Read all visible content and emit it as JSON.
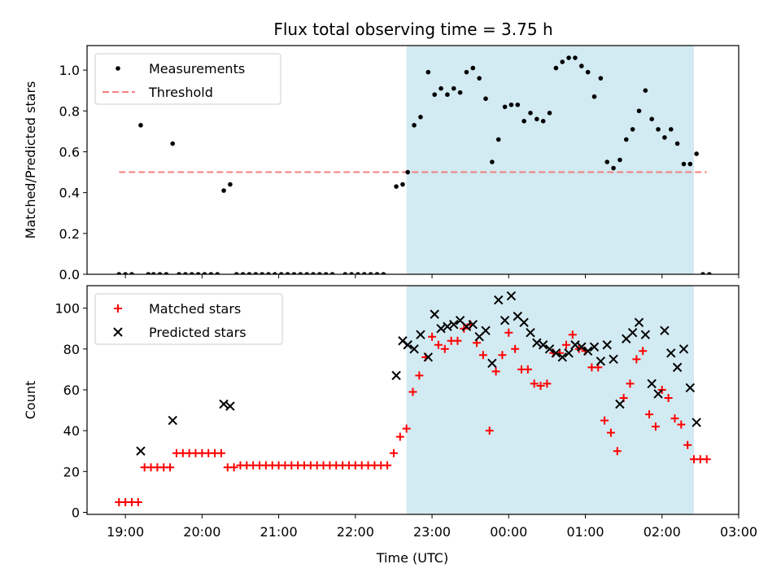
{
  "title": "Flux total observing time = 3.75 h",
  "xlabel": "Time (UTC)",
  "x_ticks": [
    "19:00",
    "20:00",
    "21:00",
    "22:00",
    "23:00",
    "00:00",
    "01:00",
    "02:00",
    "03:00"
  ],
  "colors": {
    "shade": "#add8e6",
    "threshold": "#f08080",
    "measurements": "#000000",
    "matched": "#ff0000",
    "predicted": "#000000"
  },
  "chart_data": [
    {
      "type": "scatter",
      "ylabel": "Matched/Predicted stars",
      "xlim": [
        "18:30",
        "03:00"
      ],
      "ylim": [
        0,
        1.12
      ],
      "y_ticks": [
        "0.0",
        "0.2",
        "0.4",
        "0.6",
        "0.8",
        "1.0"
      ],
      "shaded_interval": [
        "22:40",
        "02:25"
      ],
      "legend": {
        "location": "upper-left",
        "entries": [
          "Measurements",
          "Threshold"
        ]
      },
      "threshold": {
        "name": "Threshold",
        "value": 0.5,
        "x_range": [
          "18:55",
          "02:35"
        ],
        "style": "dashed"
      },
      "series": [
        {
          "name": "Measurements",
          "marker": "dot",
          "points": [
            [
              "18:55",
              0
            ],
            [
              "19:00",
              0
            ],
            [
              "19:05",
              0
            ],
            [
              "19:12",
              0.73
            ],
            [
              "19:18",
              0
            ],
            [
              "19:22",
              0
            ],
            [
              "19:27",
              0
            ],
            [
              "19:32",
              0
            ],
            [
              "19:37",
              0.64
            ],
            [
              "19:42",
              0
            ],
            [
              "19:47",
              0
            ],
            [
              "19:52",
              0
            ],
            [
              "19:57",
              0
            ],
            [
              "20:02",
              0
            ],
            [
              "20:07",
              0
            ],
            [
              "20:12",
              0
            ],
            [
              "20:17",
              0.41
            ],
            [
              "20:22",
              0.44
            ],
            [
              "20:27",
              0
            ],
            [
              "20:32",
              0
            ],
            [
              "20:37",
              0
            ],
            [
              "20:42",
              0
            ],
            [
              "20:47",
              0
            ],
            [
              "20:52",
              0
            ],
            [
              "20:57",
              0
            ],
            [
              "21:02",
              0
            ],
            [
              "21:07",
              0
            ],
            [
              "21:12",
              0
            ],
            [
              "21:17",
              0
            ],
            [
              "21:22",
              0
            ],
            [
              "21:27",
              0
            ],
            [
              "21:32",
              0
            ],
            [
              "21:37",
              0
            ],
            [
              "21:42",
              0
            ],
            [
              "21:52",
              0
            ],
            [
              "21:57",
              0
            ],
            [
              "22:02",
              0
            ],
            [
              "22:07",
              0
            ],
            [
              "22:12",
              0
            ],
            [
              "22:17",
              0
            ],
            [
              "22:22",
              0
            ],
            [
              "22:32",
              0.43
            ],
            [
              "22:37",
              0.44
            ],
            [
              "22:41",
              0.5
            ],
            [
              "22:46",
              0.73
            ],
            [
              "22:51",
              0.77
            ],
            [
              "22:57",
              0.99
            ],
            [
              "23:02",
              0.88
            ],
            [
              "23:07",
              0.91
            ],
            [
              "23:12",
              0.88
            ],
            [
              "23:17",
              0.91
            ],
            [
              "23:22",
              0.89
            ],
            [
              "23:27",
              0.99
            ],
            [
              "23:32",
              1.01
            ],
            [
              "23:37",
              0.96
            ],
            [
              "23:42",
              0.86
            ],
            [
              "23:47",
              0.55
            ],
            [
              "23:52",
              0.66
            ],
            [
              "23:57",
              0.82
            ],
            [
              "00:02",
              0.83
            ],
            [
              "00:07",
              0.83
            ],
            [
              "00:12",
              0.75
            ],
            [
              "00:17",
              0.79
            ],
            [
              "00:22",
              0.76
            ],
            [
              "00:27",
              0.75
            ],
            [
              "00:32",
              0.79
            ],
            [
              "00:37",
              1.01
            ],
            [
              "00:42",
              1.04
            ],
            [
              "00:47",
              1.06
            ],
            [
              "00:52",
              1.06
            ],
            [
              "00:57",
              1.02
            ],
            [
              "01:02",
              0.99
            ],
            [
              "01:07",
              0.87
            ],
            [
              "01:12",
              0.96
            ],
            [
              "01:17",
              0.55
            ],
            [
              "01:22",
              0.52
            ],
            [
              "01:27",
              0.56
            ],
            [
              "01:32",
              0.66
            ],
            [
              "01:37",
              0.71
            ],
            [
              "01:42",
              0.8
            ],
            [
              "01:47",
              0.9
            ],
            [
              "01:52",
              0.76
            ],
            [
              "01:57",
              0.71
            ],
            [
              "02:02",
              0.67
            ],
            [
              "02:07",
              0.71
            ],
            [
              "02:12",
              0.64
            ],
            [
              "02:17",
              0.54
            ],
            [
              "02:22",
              0.54
            ],
            [
              "02:27",
              0.59
            ],
            [
              "02:32",
              0
            ],
            [
              "02:37",
              0
            ]
          ]
        }
      ]
    },
    {
      "type": "scatter",
      "ylabel": "Count",
      "xlim": [
        "18:30",
        "03:00"
      ],
      "ylim": [
        -1,
        111
      ],
      "y_ticks": [
        "0",
        "20",
        "40",
        "60",
        "80",
        "100"
      ],
      "shaded_interval": [
        "22:40",
        "02:25"
      ],
      "legend": {
        "location": "upper-left",
        "entries": [
          "Matched stars",
          "Predicted stars"
        ]
      },
      "series": [
        {
          "name": "Matched stars",
          "marker": "plus",
          "points": [
            [
              "18:55",
              5
            ],
            [
              "19:00",
              5
            ],
            [
              "19:05",
              5
            ],
            [
              "19:10",
              5
            ],
            [
              "19:15",
              22
            ],
            [
              "19:20",
              22
            ],
            [
              "19:25",
              22
            ],
            [
              "19:30",
              22
            ],
            [
              "19:35",
              22
            ],
            [
              "19:40",
              29
            ],
            [
              "19:45",
              29
            ],
            [
              "19:50",
              29
            ],
            [
              "19:55",
              29
            ],
            [
              "20:00",
              29
            ],
            [
              "20:05",
              29
            ],
            [
              "20:10",
              29
            ],
            [
              "20:15",
              29
            ],
            [
              "20:20",
              22
            ],
            [
              "20:25",
              22
            ],
            [
              "20:30",
              23
            ],
            [
              "20:35",
              23
            ],
            [
              "20:40",
              23
            ],
            [
              "20:45",
              23
            ],
            [
              "20:50",
              23
            ],
            [
              "20:55",
              23
            ],
            [
              "21:00",
              23
            ],
            [
              "21:05",
              23
            ],
            [
              "21:10",
              23
            ],
            [
              "21:15",
              23
            ],
            [
              "21:20",
              23
            ],
            [
              "21:25",
              23
            ],
            [
              "21:30",
              23
            ],
            [
              "21:35",
              23
            ],
            [
              "21:40",
              23
            ],
            [
              "21:45",
              23
            ],
            [
              "21:50",
              23
            ],
            [
              "21:55",
              23
            ],
            [
              "22:00",
              23
            ],
            [
              "22:05",
              23
            ],
            [
              "22:10",
              23
            ],
            [
              "22:15",
              23
            ],
            [
              "22:20",
              23
            ],
            [
              "22:25",
              23
            ],
            [
              "22:30",
              29
            ],
            [
              "22:35",
              37
            ],
            [
              "22:40",
              41
            ],
            [
              "22:45",
              59
            ],
            [
              "22:50",
              67
            ],
            [
              "22:55",
              76
            ],
            [
              "23:00",
              86
            ],
            [
              "23:05",
              82
            ],
            [
              "23:10",
              80
            ],
            [
              "23:15",
              84
            ],
            [
              "23:20",
              84
            ],
            [
              "23:25",
              90
            ],
            [
              "23:30",
              92
            ],
            [
              "23:35",
              83
            ],
            [
              "23:40",
              77
            ],
            [
              "23:45",
              40
            ],
            [
              "23:50",
              69
            ],
            [
              "23:55",
              77
            ],
            [
              "00:00",
              88
            ],
            [
              "00:05",
              80
            ],
            [
              "00:10",
              70
            ],
            [
              "00:15",
              70
            ],
            [
              "00:20",
              63
            ],
            [
              "00:25",
              62
            ],
            [
              "00:30",
              63
            ],
            [
              "00:35",
              78
            ],
            [
              "00:40",
              78
            ],
            [
              "00:45",
              82
            ],
            [
              "00:50",
              87
            ],
            [
              "00:55",
              80
            ],
            [
              "01:00",
              79
            ],
            [
              "01:05",
              71
            ],
            [
              "01:10",
              71
            ],
            [
              "01:15",
              45
            ],
            [
              "01:20",
              39
            ],
            [
              "01:25",
              30
            ],
            [
              "01:30",
              56
            ],
            [
              "01:35",
              63
            ],
            [
              "01:40",
              75
            ],
            [
              "01:45",
              79
            ],
            [
              "01:50",
              48
            ],
            [
              "01:55",
              42
            ],
            [
              "02:00",
              60
            ],
            [
              "02:05",
              56
            ],
            [
              "02:10",
              46
            ],
            [
              "02:15",
              43
            ],
            [
              "02:20",
              33
            ],
            [
              "02:25",
              26
            ],
            [
              "02:30",
              26
            ],
            [
              "02:35",
              26
            ]
          ]
        },
        {
          "name": "Predicted stars",
          "marker": "x",
          "points": [
            [
              "19:12",
              30
            ],
            [
              "19:37",
              45
            ],
            [
              "20:17",
              53
            ],
            [
              "20:22",
              52
            ],
            [
              "22:32",
              67
            ],
            [
              "22:37",
              84
            ],
            [
              "22:41",
              82
            ],
            [
              "22:46",
              80
            ],
            [
              "22:51",
              87
            ],
            [
              "22:57",
              76
            ],
            [
              "23:02",
              97
            ],
            [
              "23:07",
              90
            ],
            [
              "23:12",
              91
            ],
            [
              "23:17",
              92
            ],
            [
              "23:22",
              94
            ],
            [
              "23:27",
              91
            ],
            [
              "23:32",
              92
            ],
            [
              "23:37",
              86
            ],
            [
              "23:42",
              89
            ],
            [
              "23:47",
              73
            ],
            [
              "23:52",
              104
            ],
            [
              "23:57",
              94
            ],
            [
              "00:02",
              106
            ],
            [
              "00:07",
              96
            ],
            [
              "00:12",
              93
            ],
            [
              "00:17",
              88
            ],
            [
              "00:22",
              83
            ],
            [
              "00:27",
              82
            ],
            [
              "00:32",
              80
            ],
            [
              "00:37",
              78
            ],
            [
              "00:42",
              76
            ],
            [
              "00:47",
              78
            ],
            [
              "00:52",
              82
            ],
            [
              "00:57",
              81
            ],
            [
              "01:02",
              79
            ],
            [
              "01:07",
              81
            ],
            [
              "01:12",
              74
            ],
            [
              "01:17",
              82
            ],
            [
              "01:22",
              75
            ],
            [
              "01:27",
              53
            ],
            [
              "01:32",
              85
            ],
            [
              "01:37",
              88
            ],
            [
              "01:42",
              93
            ],
            [
              "01:47",
              87
            ],
            [
              "01:52",
              63
            ],
            [
              "01:57",
              58
            ],
            [
              "02:02",
              89
            ],
            [
              "02:07",
              78
            ],
            [
              "02:12",
              71
            ],
            [
              "02:17",
              80
            ],
            [
              "02:22",
              61
            ],
            [
              "02:27",
              44
            ]
          ]
        }
      ]
    }
  ]
}
